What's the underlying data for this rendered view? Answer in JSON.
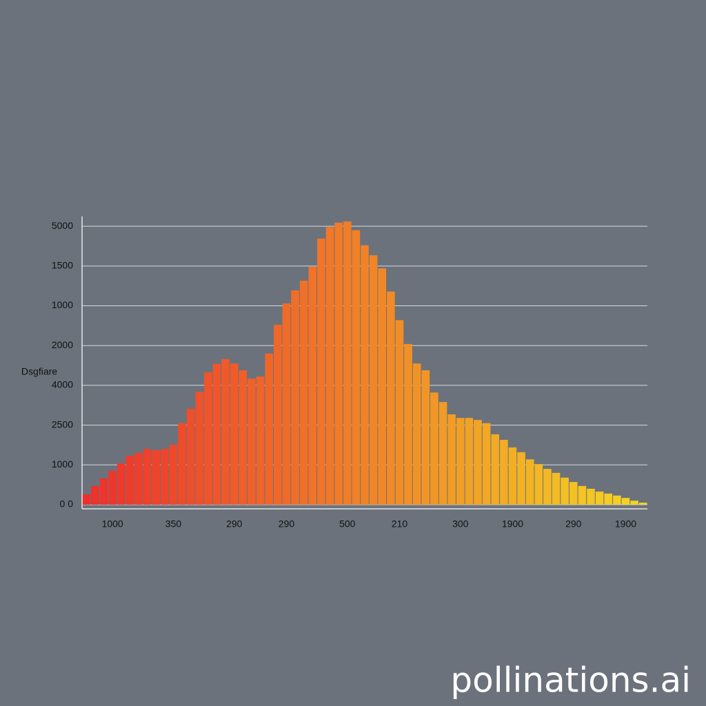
{
  "chart_data": {
    "type": "bar",
    "ylabel": "Dsgfiare",
    "categories": [
      null,
      null,
      null,
      "1000",
      null,
      null,
      null,
      null,
      null,
      null,
      "350",
      null,
      null,
      null,
      null,
      null,
      null,
      "290",
      null,
      null,
      null,
      null,
      null,
      "290",
      null,
      null,
      null,
      null,
      null,
      null,
      "500",
      null,
      null,
      null,
      null,
      null,
      "210",
      null,
      null,
      null,
      null,
      null,
      null,
      "300",
      null,
      null,
      null,
      null,
      null,
      "1900",
      null,
      null,
      null,
      null,
      null,
      null,
      "290",
      null,
      null,
      null,
      null,
      null,
      "1900",
      null,
      null
    ],
    "values": [
      0.26,
      0.47,
      0.66,
      0.85,
      1.04,
      1.23,
      1.3,
      1.4,
      1.37,
      1.4,
      1.51,
      2.05,
      2.41,
      2.84,
      3.33,
      3.54,
      3.66,
      3.55,
      3.38,
      3.17,
      3.22,
      3.8,
      4.52,
      5.06,
      5.39,
      5.63,
      5.98,
      6.69,
      6.98,
      7.09,
      7.12,
      6.9,
      6.52,
      6.27,
      5.94,
      5.36,
      4.64,
      4.04,
      3.55,
      3.38,
      2.82,
      2.58,
      2.27,
      2.18,
      2.18,
      2.13,
      2.05,
      1.77,
      1.63,
      1.44,
      1.32,
      1.14,
      1.02,
      0.9,
      0.8,
      0.68,
      0.57,
      0.47,
      0.4,
      0.33,
      0.28,
      0.23,
      0.17,
      0.1,
      0.05
    ],
    "color_range": [
      "#ee2f2c",
      "#f4d622"
    ],
    "ylim": [
      0,
      7.25
    ],
    "yticks": [
      {
        "value": 0,
        "label": "0 0"
      },
      {
        "value": 1,
        "label": "1000"
      },
      {
        "value": 2,
        "label": "2500"
      },
      {
        "value": 3,
        "label": "4000"
      },
      {
        "value": 4,
        "label": "2000"
      },
      {
        "value": 5,
        "label": "1000"
      },
      {
        "value": 6,
        "label": "1500"
      },
      {
        "value": 7,
        "label": "5000"
      }
    ],
    "grid": true
  },
  "watermark": "pollinations.ai"
}
